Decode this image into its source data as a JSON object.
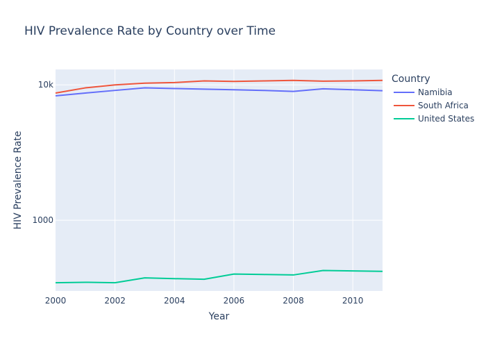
{
  "chart_data": {
    "type": "line",
    "title": "HIV Prevalence Rate by Country over Time",
    "xlabel": "Year",
    "ylabel": "HIV Prevalence Rate",
    "yscale": "log",
    "xlim": [
      2000,
      2011
    ],
    "ylim": [
      300,
      13000
    ],
    "x_ticks": [
      2000,
      2002,
      2004,
      2006,
      2008,
      2010
    ],
    "y_ticks": [
      {
        "value": 1000,
        "label": "1000"
      },
      {
        "value": 10000,
        "label": "10k"
      }
    ],
    "grid": true,
    "legend": {
      "title": "Country",
      "position": "right"
    },
    "x": [
      2000,
      2001,
      2002,
      2003,
      2004,
      2005,
      2006,
      2007,
      2008,
      2009,
      2010,
      2011
    ],
    "series": [
      {
        "name": "Namibia",
        "color": "#636efa",
        "values": [
          8300,
          8700,
          9100,
          9500,
          9400,
          9300,
          9200,
          9100,
          8950,
          9350,
          9200,
          9050
        ]
      },
      {
        "name": "South Africa",
        "color": "#ef553b",
        "values": [
          8700,
          9500,
          10000,
          10300,
          10400,
          10700,
          10600,
          10700,
          10800,
          10650,
          10700,
          10800
        ]
      },
      {
        "name": "United States",
        "color": "#00cc96",
        "values": [
          345,
          348,
          345,
          375,
          370,
          366,
          400,
          397,
          394,
          425,
          422,
          419
        ]
      }
    ]
  }
}
